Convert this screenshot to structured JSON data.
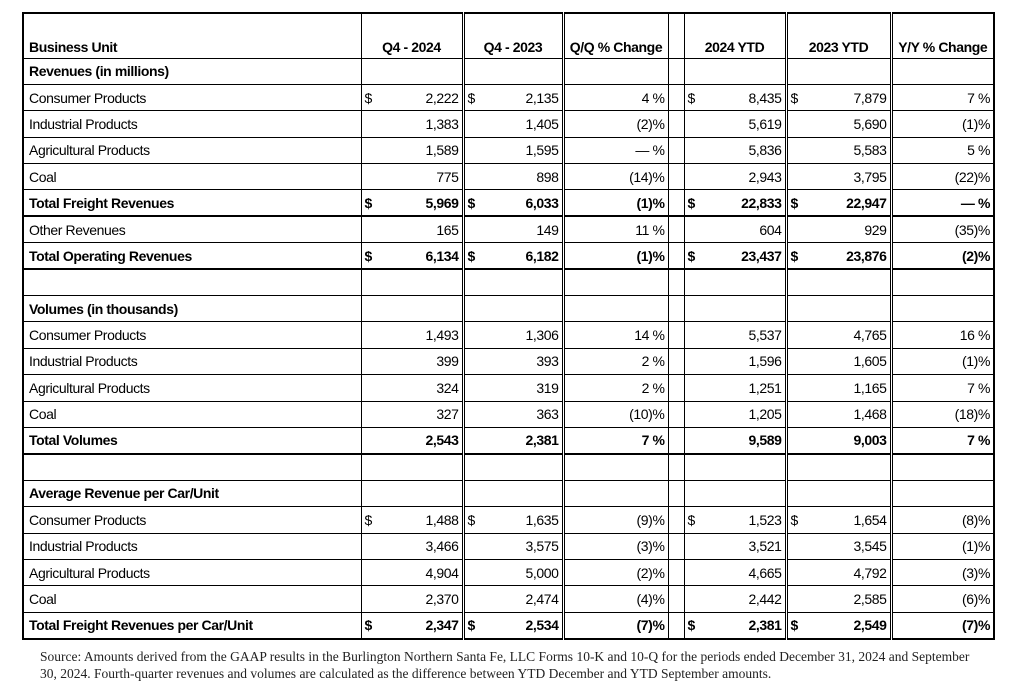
{
  "table": {
    "header": [
      "Business Unit",
      "Q4 - 2024",
      "Q4 - 2023",
      "Q/Q % Change",
      "2024 YTD",
      "2023 YTD",
      "Y/Y % Change"
    ],
    "currency_symbol": "$",
    "sections": [
      {
        "title": "Revenues (in millions)",
        "rows": [
          {
            "label": "Consumer Products",
            "currency": true,
            "total": false,
            "values": [
              "2,222",
              "2,135",
              "4 %",
              "8,435",
              "7,879",
              "7 %"
            ]
          },
          {
            "label": "Industrial Products",
            "currency": false,
            "total": false,
            "values": [
              "1,383",
              "1,405",
              "(2)%",
              "5,619",
              "5,690",
              "(1)%"
            ]
          },
          {
            "label": "Agricultural Products",
            "currency": false,
            "total": false,
            "values": [
              "1,589",
              "1,595",
              "— %",
              "5,836",
              "5,583",
              "5 %"
            ]
          },
          {
            "label": "Coal",
            "currency": false,
            "total": false,
            "values": [
              "775",
              "898",
              "(14)%",
              "2,943",
              "3,795",
              "(22)%"
            ]
          },
          {
            "label": "Total Freight Revenues",
            "currency": true,
            "total": true,
            "values": [
              "5,969",
              "6,033",
              "(1)%",
              "22,833",
              "22,947",
              "— %"
            ]
          },
          {
            "label": "Other Revenues",
            "currency": false,
            "total": false,
            "values": [
              "165",
              "149",
              "11 %",
              "604",
              "929",
              "(35)%"
            ]
          },
          {
            "label": "Total Operating Revenues",
            "currency": true,
            "total": true,
            "values": [
              "6,134",
              "6,182",
              "(1)%",
              "23,437",
              "23,876",
              "(2)%"
            ]
          }
        ]
      },
      {
        "title": "Volumes (in thousands)",
        "rows": [
          {
            "label": "Consumer Products",
            "currency": false,
            "total": false,
            "values": [
              "1,493",
              "1,306",
              "14 %",
              "5,537",
              "4,765",
              "16 %"
            ]
          },
          {
            "label": "Industrial Products",
            "currency": false,
            "total": false,
            "values": [
              "399",
              "393",
              "2 %",
              "1,596",
              "1,605",
              "(1)%"
            ]
          },
          {
            "label": "Agricultural Products",
            "currency": false,
            "total": false,
            "values": [
              "324",
              "319",
              "2 %",
              "1,251",
              "1,165",
              "7 %"
            ]
          },
          {
            "label": "Coal",
            "currency": false,
            "total": false,
            "values": [
              "327",
              "363",
              "(10)%",
              "1,205",
              "1,468",
              "(18)%"
            ]
          },
          {
            "label": "Total Volumes",
            "currency": false,
            "total": true,
            "values": [
              "2,543",
              "2,381",
              "7 %",
              "9,589",
              "9,003",
              "7 %"
            ]
          }
        ]
      },
      {
        "title": "Average Revenue per Car/Unit",
        "rows": [
          {
            "label": "Consumer Products",
            "currency": true,
            "total": false,
            "values": [
              "1,488",
              "1,635",
              "(9)%",
              "1,523",
              "1,654",
              "(8)%"
            ]
          },
          {
            "label": "Industrial Products",
            "currency": false,
            "total": false,
            "values": [
              "3,466",
              "3,575",
              "(3)%",
              "3,521",
              "3,545",
              "(1)%"
            ]
          },
          {
            "label": "Agricultural Products",
            "currency": false,
            "total": false,
            "values": [
              "4,904",
              "5,000",
              "(2)%",
              "4,665",
              "4,792",
              "(3)%"
            ]
          },
          {
            "label": "Coal",
            "currency": false,
            "total": false,
            "values": [
              "2,370",
              "2,474",
              "(4)%",
              "2,442",
              "2,585",
              "(6)%"
            ]
          },
          {
            "label": "Total Freight Revenues per Car/Unit",
            "currency": true,
            "total": true,
            "values": [
              "2,347",
              "2,534",
              "(7)%",
              "2,381",
              "2,549",
              "(7)%"
            ]
          }
        ]
      }
    ]
  },
  "footnote": "Source: Amounts derived from the GAAP results in the Burlington Northern Santa Fe, LLC Forms 10-K and 10-Q for the periods ended December 31, 2024 and September 30, 2024. Fourth-quarter revenues and volumes are calculated as the difference between YTD December and YTD September amounts."
}
